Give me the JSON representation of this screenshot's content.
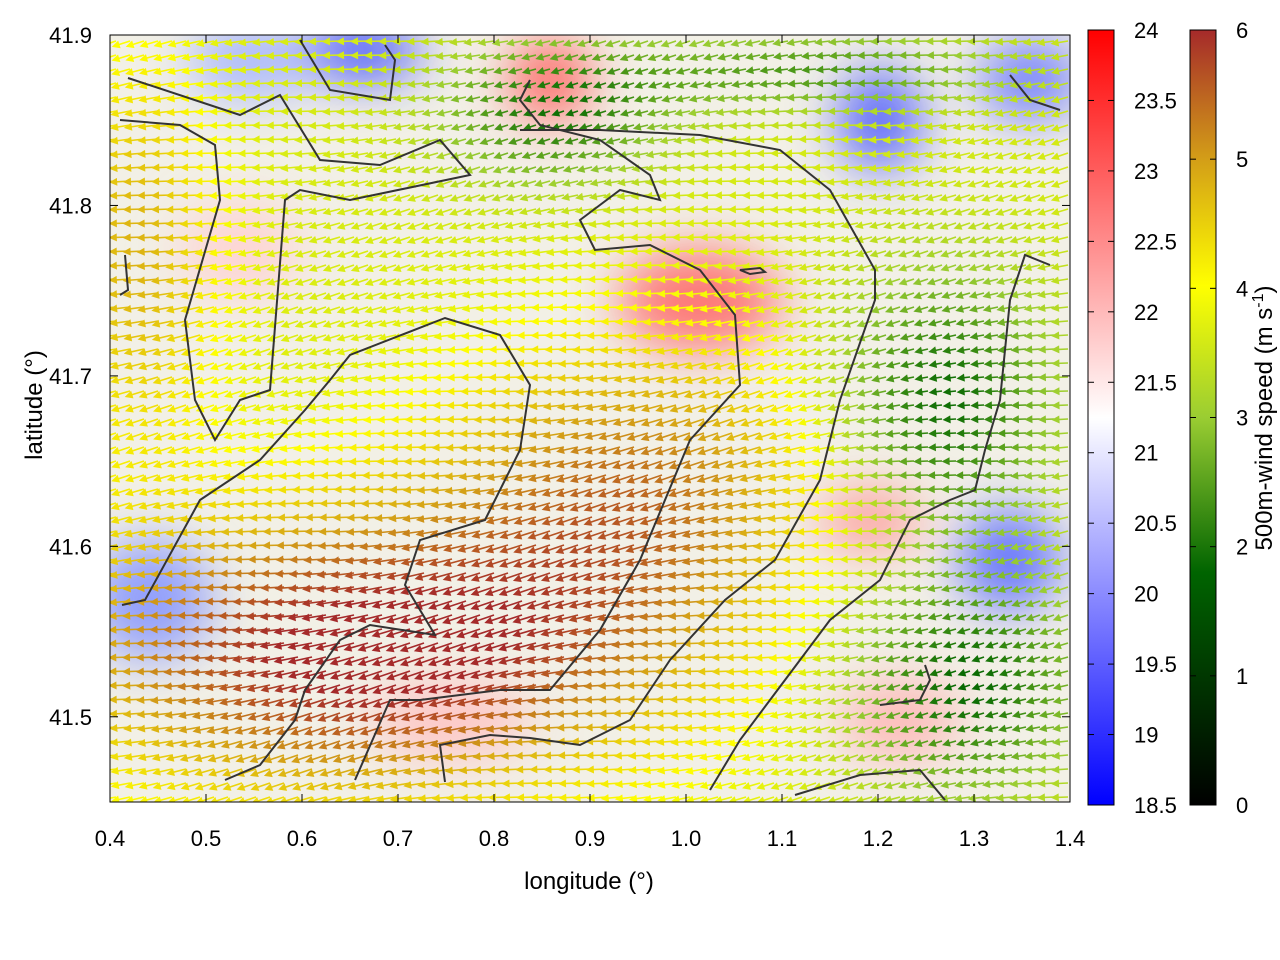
{
  "chart_data": {
    "type": "heatmap",
    "title": "",
    "xlabel": "longitude (°)",
    "ylabel": "latitude (°)",
    "xlim": [
      0.4,
      1.4
    ],
    "ylim": [
      41.45,
      41.9
    ],
    "x_ticks": [
      "0.4",
      "0.5",
      "0.6",
      "0.7",
      "0.8",
      "0.9",
      "1.0",
      "1.1",
      "1.2",
      "1.3",
      "1.4"
    ],
    "y_ticks": [
      "41.5",
      "41.6",
      "41.7",
      "41.8",
      "41.9"
    ],
    "colorbar_temperature": {
      "range": [
        18.5,
        24
      ],
      "ticks": [
        "18.5",
        "19",
        "19.5",
        "20",
        "20.5",
        "21",
        "21.5",
        "22",
        "22.5",
        "23",
        "23.5",
        "24"
      ],
      "colors": [
        "#0000ff",
        "#ffffff",
        "#ff0000"
      ]
    },
    "colorbar_wind": {
      "label_main": "500m-wind speed (m s",
      "label_sup": "-1",
      "label_end": ")",
      "range": [
        0,
        6
      ],
      "ticks": [
        "0",
        "1",
        "2",
        "3",
        "4",
        "5",
        "6"
      ],
      "colors": [
        "#000000",
        "#006400",
        "#9acd32",
        "#ffff00",
        "#d4a017",
        "#a52a2a"
      ]
    },
    "contour_color": "#333333"
  }
}
